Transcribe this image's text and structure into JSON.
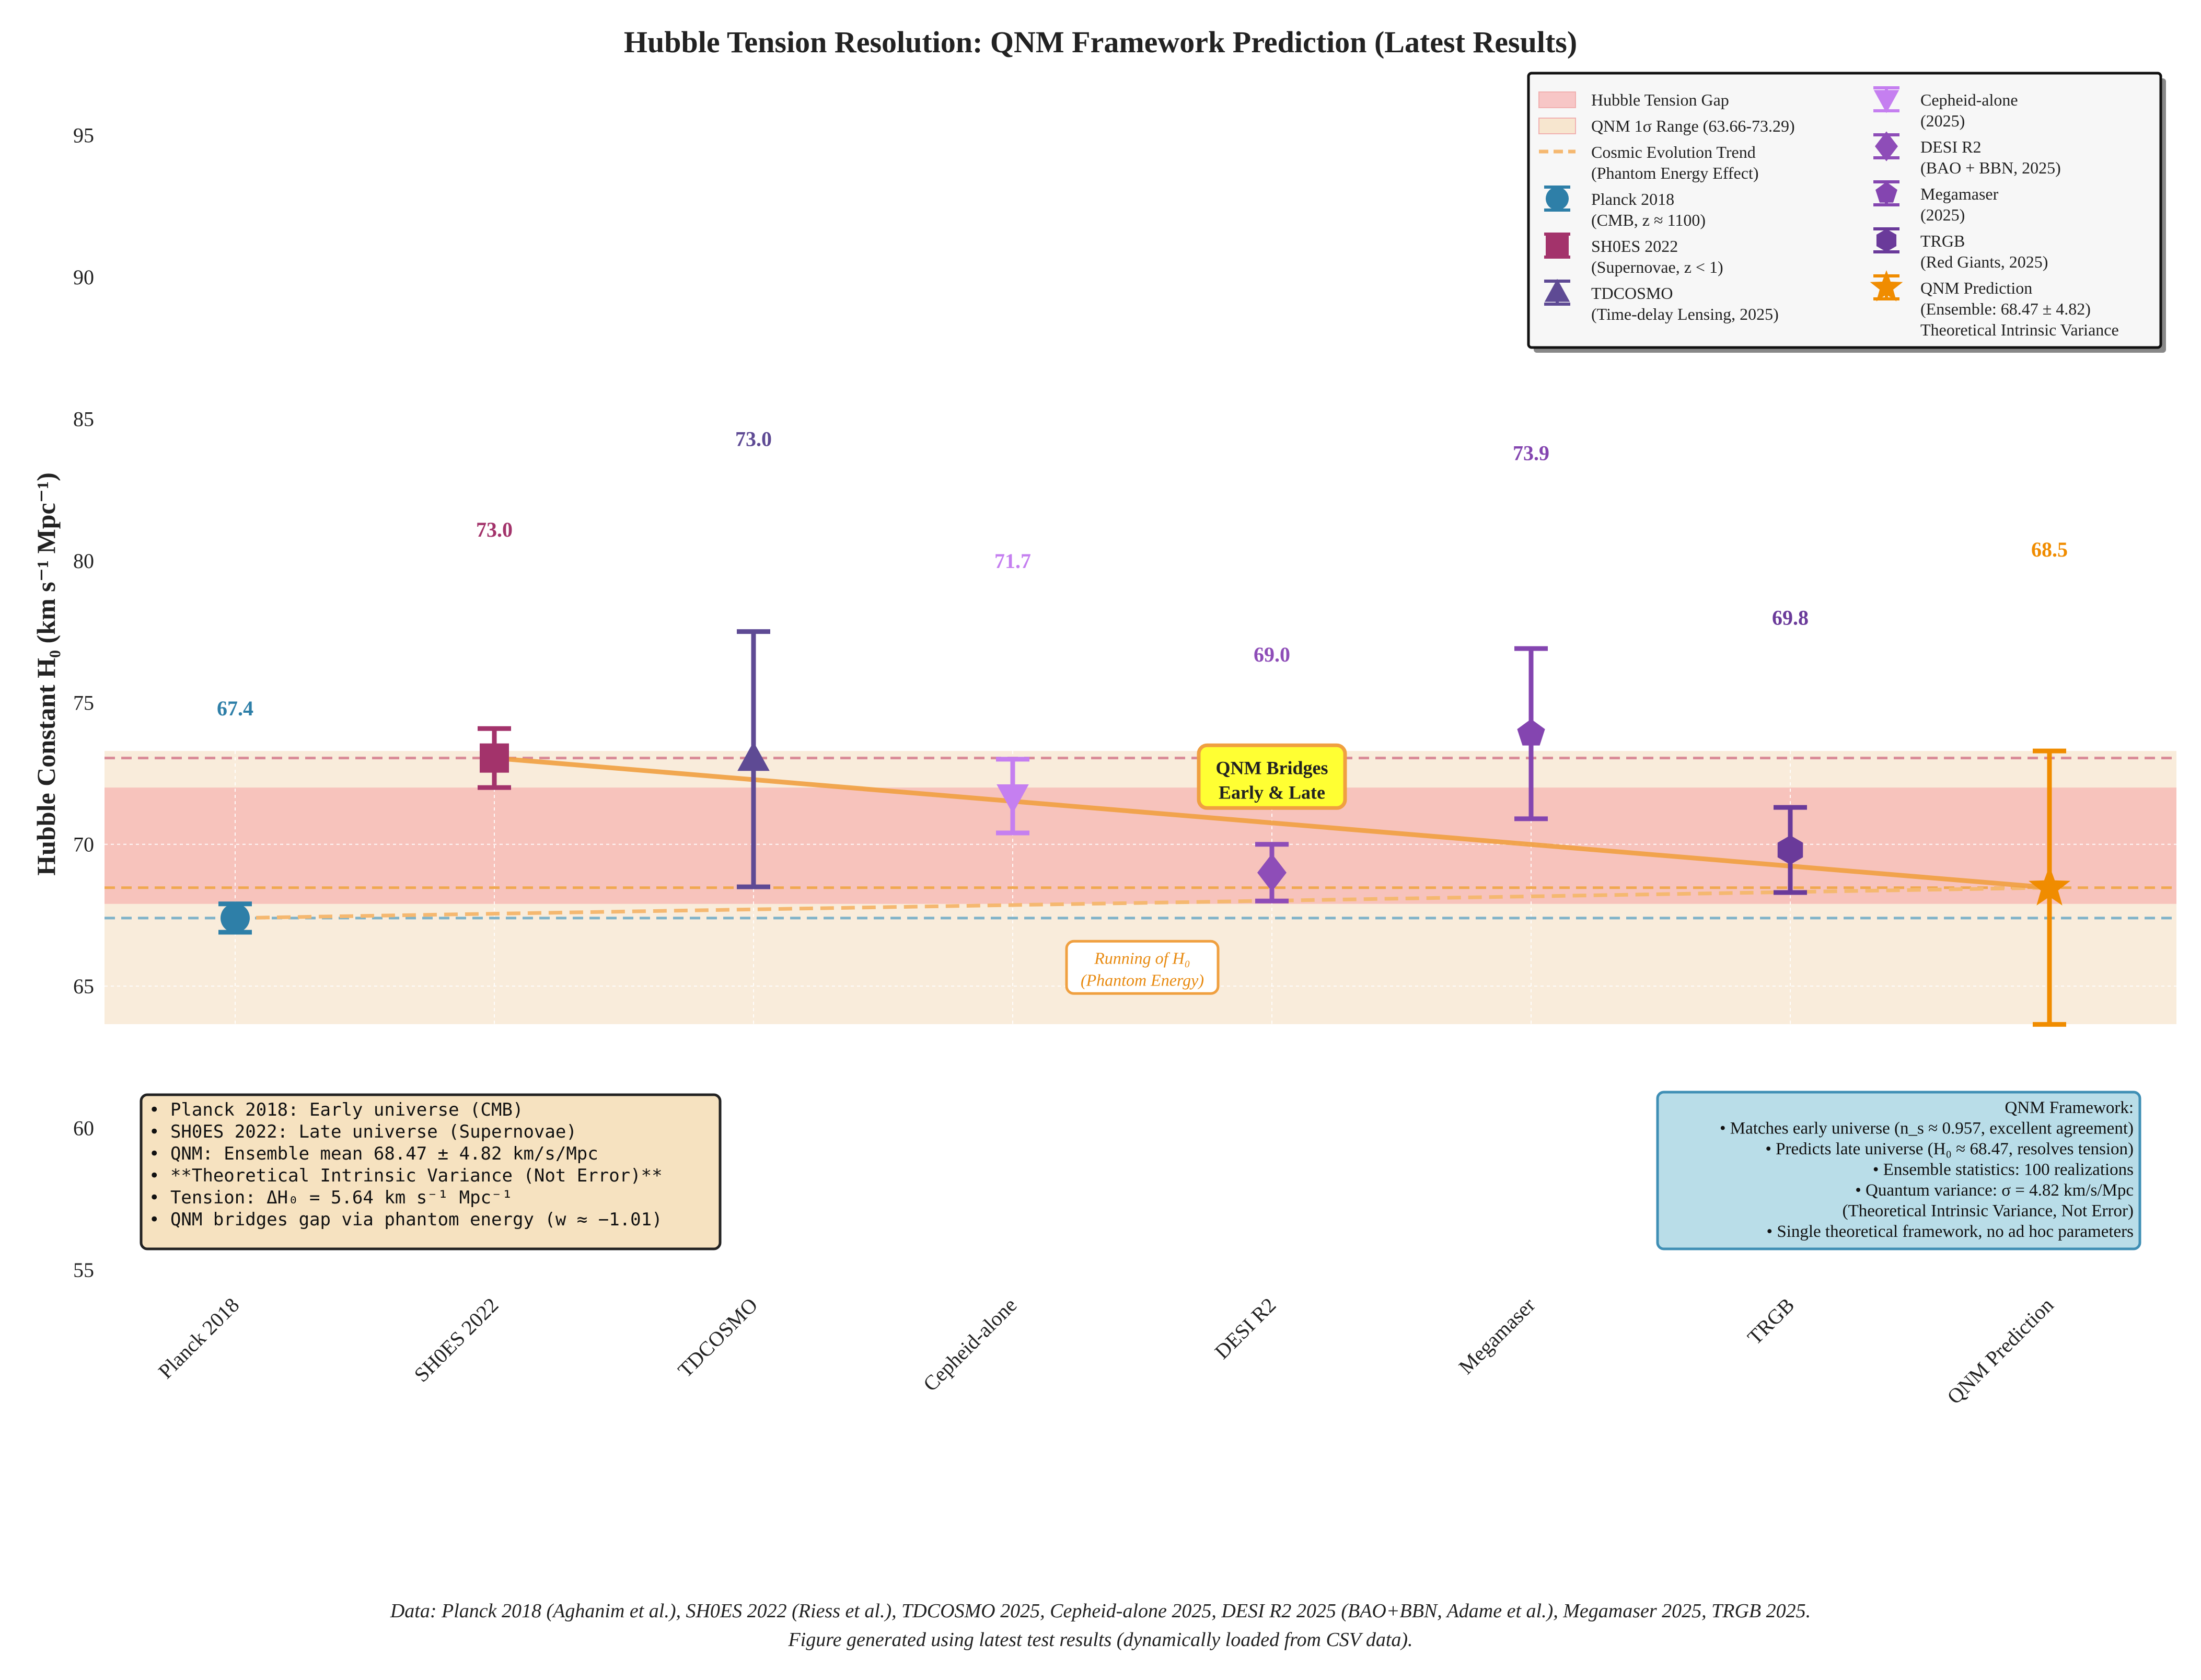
{
  "chart_data": {
    "type": "scatter",
    "title": "Hubble Tension Resolution: QNM Framework Prediction (Latest Results)",
    "ylabel": "Hubble Constant H₀ (km s⁻¹ Mpc⁻¹)",
    "ylim": [
      55,
      97
    ],
    "yticks": [
      55,
      60,
      65,
      70,
      75,
      80,
      85,
      90,
      95
    ],
    "grid": true,
    "legend_placement": "top-right",
    "categories": [
      "Planck 2018",
      "SH0ES 2022",
      "TDCOSMO",
      "Cepheid-alone",
      "DESI R2",
      "Megamaser",
      "TRGB",
      "QNM Prediction"
    ],
    "points": [
      {
        "category": "Planck 2018",
        "value": 67.4,
        "err_low": 0.5,
        "err_high": 0.5,
        "label": "67.4",
        "label_y": 74.8,
        "marker": "circle",
        "color": "#2e7fa8"
      },
      {
        "category": "SH0ES 2022",
        "value": 73.04,
        "err_low": 1.04,
        "err_high": 1.04,
        "label": "73.0",
        "label_y": 81.1,
        "marker": "square",
        "color": "#a3336b"
      },
      {
        "category": "TDCOSMO",
        "value": 73.0,
        "err_low": 4.5,
        "err_high": 4.5,
        "label": "73.0",
        "label_y": 84.3,
        "marker": "triangle-up",
        "color": "#5e4a94"
      },
      {
        "category": "Cepheid-alone",
        "value": 71.7,
        "err_low": 1.3,
        "err_high": 1.3,
        "label": "71.7",
        "label_y": 80.0,
        "marker": "triangle-down",
        "color": "#c57ff0"
      },
      {
        "category": "DESI R2",
        "value": 69.0,
        "err_low": 1.0,
        "err_high": 1.0,
        "label": "69.0",
        "label_y": 76.7,
        "marker": "diamond",
        "color": "#8e4db8"
      },
      {
        "category": "Megamaser",
        "value": 73.9,
        "err_low": 3.0,
        "err_high": 3.0,
        "label": "73.9",
        "label_y": 83.8,
        "marker": "pentagon",
        "color": "#8445b0"
      },
      {
        "category": "TRGB",
        "value": 69.8,
        "err_low": 1.5,
        "err_high": 1.5,
        "label": "69.8",
        "label_y": 78.0,
        "marker": "hexagon",
        "color": "#6a3a9a"
      },
      {
        "category": "QNM Prediction",
        "value": 68.47,
        "err_low": 4.82,
        "err_high": 4.82,
        "label": "68.5",
        "label_y": 80.4,
        "marker": "star",
        "color": "#f08c00"
      }
    ],
    "bands": [
      {
        "name": "Hubble Tension Gap",
        "from": 67.9,
        "to": 72.0,
        "color": "#f5a3a3"
      },
      {
        "name": "QNM 1σ Range (63.66-73.29)",
        "from": 63.66,
        "to": 73.29,
        "color": "#f7e6cf"
      }
    ],
    "hlines": [
      {
        "y": 73.04,
        "color": "#d98a97"
      },
      {
        "y": 68.47,
        "color": "#f0a850"
      },
      {
        "y": 67.4,
        "color": "#7fb3c9"
      }
    ],
    "trend_solid": {
      "from_category": "SH0ES 2022",
      "to_category": "QNM Prediction",
      "from": 73.04,
      "to": 68.47,
      "color": "#f0a040"
    },
    "trend_dashed": {
      "from_category": "Planck 2018",
      "to_category": "QNM Prediction",
      "from": 67.4,
      "to": 68.47,
      "color": "#f5b870"
    }
  },
  "annotations": {
    "bridge_box": {
      "lines": [
        "QNM Bridges",
        "Early & Late"
      ],
      "x_category_index": 4,
      "y": 72.2
    },
    "running_box": {
      "lines": [
        "Running of H₀",
        "(Phantom Energy)"
      ],
      "x_category_index": 3.5,
      "y": 65.2
    }
  },
  "legend": {
    "items": [
      {
        "kind": "band",
        "color": "#f7c6c6",
        "lines": [
          "Hubble Tension Gap"
        ]
      },
      {
        "kind": "band",
        "color": "#f7e6cf",
        "lines": [
          "QNM 1σ Range (63.66-73.29)"
        ]
      },
      {
        "kind": "dash",
        "color": "#f5b870",
        "lines": [
          "Cosmic Evolution Trend",
          "(Phantom Energy Effect)"
        ]
      },
      {
        "kind": "marker",
        "marker": "circle",
        "color": "#2e7fa8",
        "lines": [
          "Planck 2018",
          "(CMB, z ≈ 1100)"
        ]
      },
      {
        "kind": "marker",
        "marker": "square",
        "color": "#a3336b",
        "lines": [
          "SH0ES 2022",
          "(Supernovae, z < 1)"
        ]
      },
      {
        "kind": "marker",
        "marker": "triangle-up",
        "color": "#5e4a94",
        "lines": [
          "TDCOSMO",
          "(Time-delay Lensing, 2025)"
        ]
      },
      {
        "kind": "marker",
        "marker": "triangle-down",
        "color": "#c57ff0",
        "lines": [
          "Cepheid-alone",
          "(2025)"
        ]
      },
      {
        "kind": "marker",
        "marker": "diamond",
        "color": "#8e4db8",
        "lines": [
          "DESI R2",
          "(BAO + BBN, 2025)"
        ]
      },
      {
        "kind": "marker",
        "marker": "pentagon",
        "color": "#8445b0",
        "lines": [
          "Megamaser",
          "(2025)"
        ]
      },
      {
        "kind": "marker",
        "marker": "hexagon",
        "color": "#6a3a9a",
        "lines": [
          "TRGB",
          "(Red Giants, 2025)"
        ]
      },
      {
        "kind": "marker",
        "marker": "star",
        "color": "#f08c00",
        "lines": [
          "QNM Prediction",
          "(Ensemble: 68.47 ± 4.82)",
          "Theoretical Intrinsic Variance"
        ]
      }
    ]
  },
  "notes_left": {
    "lines": [
      "• Planck 2018: Early universe (CMB)",
      "• SH0ES 2022: Late universe (Supernovae)",
      "• QNM: Ensemble mean 68.47 ± 4.82 km/s/Mpc",
      "• **Theoretical Intrinsic Variance (Not Error)**",
      "• Tension: ΔH₀ = 5.64 km s⁻¹ Mpc⁻¹",
      "• QNM bridges gap via phantom energy (w ≈ −1.01)"
    ]
  },
  "notes_right": {
    "lines": [
      "QNM Framework:",
      "• Matches early universe (n_s ≈ 0.957, excellent agreement)",
      "• Predicts late universe (H₀ ≈ 68.47, resolves tension)",
      "• Ensemble statistics: 100 realizations",
      "• Quantum variance: σ = 4.82 km/s/Mpc",
      "(Theoretical Intrinsic Variance, Not Error)",
      "• Single theoretical framework, no ad hoc parameters"
    ]
  },
  "caption": {
    "lines": [
      "Data: Planck 2018 (Aghanim et al.), SH0ES 2022 (Riess et al.), TDCOSMO 2025, Cepheid-alone 2025, DESI R2 2025 (BAO+BBN, Adame et al.), Megamaser 2025, TRGB 2025.",
      "Figure generated using latest test results (dynamically loaded from CSV data)."
    ]
  }
}
